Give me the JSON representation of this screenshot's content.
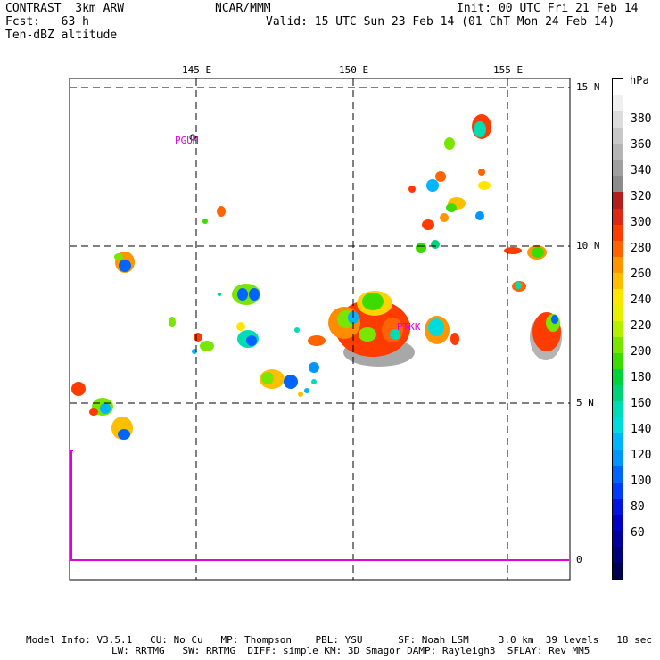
{
  "header": {
    "left_line1": "CONTRAST  3km ARW",
    "left_line2": "Fcst:   63 h",
    "left_line3": "Ten-dBZ altitude",
    "center": "NCAR/MMM",
    "right_line1": "Init: 00 UTC Fri 21 Feb 14",
    "right_line2": "Valid: 15 UTC Sun 23 Feb 14 (01 ChT Mon 24 Feb 14)"
  },
  "map": {
    "lon_labels": [
      "145 E",
      "150 E",
      "155 E"
    ],
    "lat_labels": [
      "15 N",
      "10 N",
      "5 N"
    ],
    "stations": [
      "PGUM",
      "PTKK"
    ],
    "inset_zero_label": "0"
  },
  "colorbar": {
    "unit": "hPa",
    "labels": [
      "380",
      "360",
      "340",
      "320",
      "300",
      "280",
      "260",
      "240",
      "220",
      "200",
      "180",
      "160",
      "140",
      "120",
      "100",
      "80",
      "60"
    ],
    "colors": [
      "#ffffff",
      "#f0f0f0",
      "#dcdcdc",
      "#c8c8c8",
      "#b4b4b4",
      "#a0a0a0",
      "#8c8c8c",
      "#b41e1e",
      "#dc2814",
      "#ff3c00",
      "#ff6400",
      "#ff9600",
      "#ffbe00",
      "#ffe600",
      "#e6f000",
      "#b4f000",
      "#78e600",
      "#3cdc00",
      "#00d23c",
      "#00d278",
      "#00dcb4",
      "#00dcdc",
      "#00b4ff",
      "#0096ff",
      "#0064ff",
      "#003cff",
      "#0014e6",
      "#0000c8",
      "#0000a0",
      "#000078",
      "#000050"
    ]
  },
  "footer": {
    "line1": "Model Info: V3.5.1   CU: No Cu   MP: Thompson    PBL: YSU      SF: Noah LSM     3.0 km  39 levels   18 sec",
    "line2": "LW: RRTMG   SW: RRTMG  DIFF: simple KM: 3D Smagor DAMP: Rayleigh3  SFLAY: Rev MM5"
  }
}
